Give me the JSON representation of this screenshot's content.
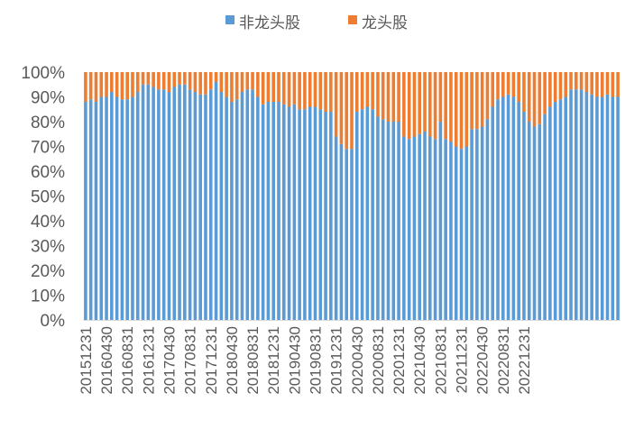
{
  "chart_data": {
    "type": "bar",
    "stacked": true,
    "percent_stacked": true,
    "legend": {
      "position": "top",
      "entries": [
        {
          "label": "非龙头股",
          "color": "#5B9BD5"
        },
        {
          "label": "龙头股",
          "color": "#ED7D31"
        }
      ]
    },
    "y_ticks": [
      "0%",
      "10%",
      "20%",
      "30%",
      "40%",
      "50%",
      "60%",
      "70%",
      "80%",
      "90%",
      "100%"
    ],
    "ylim": [
      0,
      100
    ],
    "x_tick_labels": [
      "20151231",
      "20160430",
      "20160831",
      "20161231",
      "20170430",
      "20170831",
      "20171231",
      "20180430",
      "20180831",
      "20181231",
      "20190430",
      "20190831",
      "20191231",
      "20200430",
      "20200831",
      "20201231",
      "20210430",
      "20210831",
      "20211231",
      "20220430",
      "20220831",
      "20221231"
    ],
    "label_every": 4,
    "series": [
      {
        "name": "非龙头股",
        "color": "#5B9BD5",
        "values": [
          88,
          89,
          88,
          90,
          90,
          92,
          90,
          89,
          89,
          90,
          92,
          95,
          95,
          94,
          93,
          93,
          92,
          94,
          95,
          95,
          93,
          92,
          91,
          91,
          93,
          96,
          92,
          90,
          88,
          89,
          92,
          93,
          93,
          90,
          87,
          88,
          88,
          88,
          87,
          86,
          87,
          85,
          85,
          86,
          86,
          85,
          84,
          84,
          74,
          71,
          69,
          69,
          84,
          85,
          86,
          85,
          82,
          81,
          80,
          80,
          80,
          74,
          73,
          74,
          75,
          76,
          74,
          73,
          80,
          73,
          72,
          70,
          69,
          70,
          77,
          77,
          78,
          81,
          86,
          89,
          90,
          91,
          90,
          88,
          84,
          80,
          78,
          79,
          83,
          86,
          88,
          89,
          90,
          93,
          93,
          93,
          92,
          91,
          90,
          90,
          91,
          90,
          90
        ]
      },
      {
        "name": "龙头股",
        "color": "#ED7D31",
        "values": [
          12,
          11,
          12,
          10,
          10,
          8,
          10,
          11,
          11,
          10,
          8,
          5,
          5,
          6,
          7,
          7,
          8,
          6,
          5,
          5,
          7,
          8,
          9,
          9,
          7,
          4,
          8,
          10,
          12,
          11,
          8,
          7,
          7,
          10,
          13,
          12,
          12,
          12,
          13,
          14,
          13,
          15,
          15,
          14,
          14,
          15,
          16,
          16,
          26,
          29,
          31,
          31,
          16,
          15,
          14,
          15,
          18,
          19,
          20,
          20,
          20,
          26,
          27,
          26,
          25,
          24,
          26,
          27,
          20,
          27,
          28,
          30,
          31,
          30,
          23,
          23,
          22,
          19,
          14,
          11,
          10,
          9,
          10,
          12,
          16,
          20,
          22,
          21,
          17,
          14,
          12,
          11,
          10,
          7,
          7,
          7,
          8,
          9,
          10,
          10,
          9,
          10,
          10
        ]
      }
    ]
  }
}
